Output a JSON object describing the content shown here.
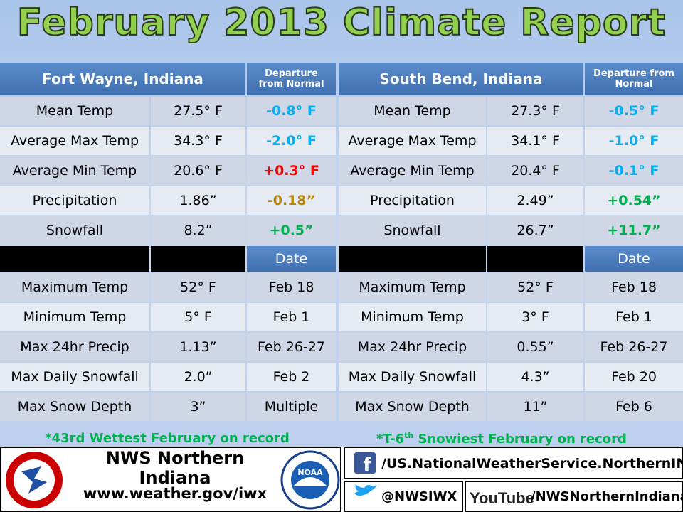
{
  "title": "February 2013 Climate Report",
  "tables": [
    {
      "station": "Fort Wayne, Indiana",
      "departure_header": "Departure from Normal",
      "rows": [
        {
          "label": "Mean Temp",
          "value": "27.5° F",
          "departure": "-0.8° F",
          "departure_color": "#00b0f0"
        },
        {
          "label": "Average Max Temp",
          "value": "34.3° F",
          "departure": "-2.0° F",
          "departure_color": "#00b0f0"
        },
        {
          "label": "Average Min Temp",
          "value": "20.6° F",
          "departure": "+0.3° F",
          "departure_color": "#ff0000"
        },
        {
          "label": "Precipitation",
          "value": "1.86”",
          "departure": "-0.18”",
          "departure_color": "#b8860b"
        },
        {
          "label": "Snowfall",
          "value": "8.2”",
          "departure": "+0.5”",
          "departure_color": "#00b050"
        }
      ],
      "date_header": "Date",
      "extremes": [
        {
          "label": "Maximum Temp",
          "value": "52° F",
          "date": "Feb 18"
        },
        {
          "label": "Minimum Temp",
          "value": "5° F",
          "date": "Feb 1"
        },
        {
          "label": "Max 24hr Precip",
          "value": "1.13”",
          "date": "Feb 26-27"
        },
        {
          "label": "Max Daily Snowfall",
          "value": "2.0”",
          "date": "Feb 2"
        },
        {
          "label": "Max Snow Depth",
          "value": "3”",
          "date": "Multiple"
        }
      ]
    },
    {
      "station": "South Bend, Indiana",
      "departure_header": "Departure from Normal",
      "rows": [
        {
          "label": "Mean Temp",
          "value": "27.3° F",
          "departure": "-0.5° F",
          "departure_color": "#00b0f0"
        },
        {
          "label": "Average Max Temp",
          "value": "34.1° F",
          "departure": "-1.0° F",
          "departure_color": "#00b0f0"
        },
        {
          "label": "Average Min Temp",
          "value": "20.4° F",
          "departure": "-0.1° F",
          "departure_color": "#00b0f0"
        },
        {
          "label": "Precipitation",
          "value": "2.49”",
          "departure": "+0.54”",
          "departure_color": "#00b050"
        },
        {
          "label": "Snowfall",
          "value": "26.7”",
          "departure": "+11.7”",
          "departure_color": "#00b050"
        }
      ],
      "date_header": "Date",
      "extremes": [
        {
          "label": "Maximum Temp",
          "value": "52° F",
          "date": "Feb 18"
        },
        {
          "label": "Minimum Temp",
          "value": "3° F",
          "date": "Feb 1"
        },
        {
          "label": "Max 24hr Precip",
          "value": "0.55”",
          "date": "Feb 26-27"
        },
        {
          "label": "Max Daily Snowfall",
          "value": "4.3”",
          "date": "Feb 20"
        },
        {
          "label": "Max Snow Depth",
          "value": "11”",
          "date": "Feb 6"
        }
      ]
    }
  ],
  "notes": [
    {
      "prefix": "*43rd Wettest February on record"
    },
    {
      "prefix": "*T-6",
      "sup": "th",
      "suffix": " Snowiest February on record"
    }
  ],
  "footer": {
    "office": "NWS Northern Indiana",
    "website": "www.weather.gov/iwx",
    "noaa": "NOAA",
    "facebook": "/US.NationalWeatherService.NorthernIN.gov",
    "twitter": "@NWSIWX",
    "youtube_logo": "YouTube",
    "youtube": "/NWSNorthernIndiana"
  }
}
